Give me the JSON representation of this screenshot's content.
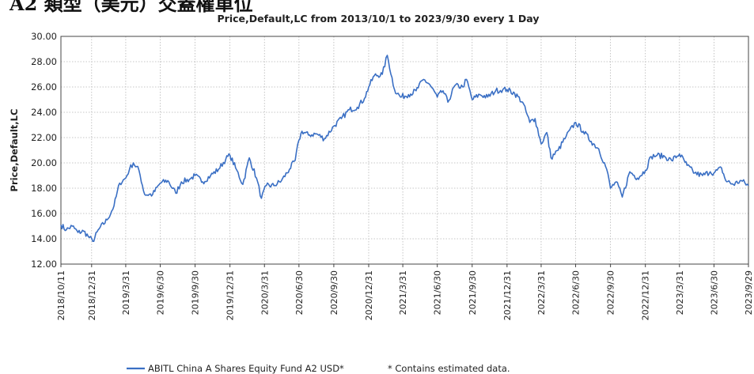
{
  "header_fragment": "A2 類型（美元）交蓋權單位",
  "chart_data": {
    "type": "line",
    "title": "Price,Default,LC from 2013/10/1 to 2023/9/30 every 1 Day",
    "ylabel": "Price,Default,LC",
    "xlabel": "",
    "ylim": [
      12.0,
      30.0
    ],
    "yticks": [
      "12.00",
      "14.00",
      "16.00",
      "18.00",
      "20.00",
      "22.00",
      "24.00",
      "26.00",
      "28.00",
      "30.00"
    ],
    "xticks": [
      "2018/10/11",
      "2018/12/31",
      "2019/3/31",
      "2019/6/30",
      "2019/9/30",
      "2019/12/31",
      "2020/3/31",
      "2020/6/30",
      "2020/9/30",
      "2020/12/31",
      "2021/3/31",
      "2021/6/30",
      "2021/9/30",
      "2021/12/31",
      "2022/3/31",
      "2022/6/30",
      "2022/9/30",
      "2022/12/31",
      "2023/3/31",
      "2023/6/30",
      "2023/9/29"
    ],
    "grid": true,
    "legend": "bottom",
    "color": "#3a6fc4",
    "series": [
      {
        "name": "ABITL China A Shares Equity Fund A2 USD*",
        "x": [
          "2018-10-11",
          "2018-10-25",
          "2018-11-10",
          "2018-11-25",
          "2018-12-10",
          "2018-12-25",
          "2019-01-03",
          "2019-01-20",
          "2019-02-10",
          "2019-02-28",
          "2019-03-15",
          "2019-03-31",
          "2019-04-10",
          "2019-04-20",
          "2019-05-05",
          "2019-05-20",
          "2019-06-10",
          "2019-06-30",
          "2019-07-20",
          "2019-08-10",
          "2019-08-25",
          "2019-09-15",
          "2019-09-30",
          "2019-10-20",
          "2019-11-10",
          "2019-12-01",
          "2019-12-20",
          "2019-12-31",
          "2020-01-15",
          "2020-02-03",
          "2020-02-20",
          "2020-03-10",
          "2020-03-23",
          "2020-04-05",
          "2020-04-25",
          "2020-05-15",
          "2020-06-05",
          "2020-06-20",
          "2020-06-30",
          "2020-07-08",
          "2020-07-25",
          "2020-08-15",
          "2020-09-05",
          "2020-09-30",
          "2020-10-20",
          "2020-11-10",
          "2020-12-01",
          "2020-12-20",
          "2020-12-31",
          "2021-01-15",
          "2021-02-05",
          "2021-02-18",
          "2021-03-09",
          "2021-03-25",
          "2021-04-15",
          "2021-05-05",
          "2021-05-25",
          "2021-06-10",
          "2021-06-30",
          "2021-07-15",
          "2021-07-28",
          "2021-08-15",
          "2021-09-05",
          "2021-09-15",
          "2021-09-30",
          "2021-10-20",
          "2021-11-10",
          "2021-12-01",
          "2021-12-20",
          "2021-12-31",
          "2022-01-20",
          "2022-02-10",
          "2022-03-01",
          "2022-03-15",
          "2022-03-31",
          "2022-04-15",
          "2022-04-26",
          "2022-05-15",
          "2022-06-05",
          "2022-06-30",
          "2022-07-20",
          "2022-08-10",
          "2022-08-30",
          "2022-09-20",
          "2022-09-30",
          "2022-10-15",
          "2022-10-31",
          "2022-11-20",
          "2022-12-10",
          "2022-12-31",
          "2023-01-15",
          "2023-01-31",
          "2023-02-20",
          "2023-03-10",
          "2023-03-31",
          "2023-04-20",
          "2023-05-10",
          "2023-05-31",
          "2023-06-20",
          "2023-06-30",
          "2023-07-20",
          "2023-07-31",
          "2023-08-20",
          "2023-09-10",
          "2023-09-29"
        ],
        "values": [
          15.1,
          14.7,
          15.0,
          14.5,
          14.6,
          14.1,
          13.8,
          14.8,
          15.5,
          16.6,
          18.4,
          18.8,
          19.5,
          20.0,
          19.4,
          17.5,
          17.5,
          18.4,
          18.6,
          17.6,
          18.5,
          18.7,
          19.0,
          18.5,
          19.0,
          19.5,
          20.3,
          20.6,
          19.6,
          18.3,
          20.4,
          18.8,
          17.2,
          18.2,
          18.2,
          18.6,
          19.5,
          20.2,
          21.8,
          22.5,
          22.2,
          22.3,
          21.9,
          22.9,
          23.5,
          24.2,
          24.4,
          25.1,
          26.0,
          26.9,
          27.0,
          28.5,
          25.8,
          25.2,
          25.4,
          25.7,
          26.6,
          26.2,
          25.2,
          25.7,
          24.8,
          26.1,
          26.0,
          26.6,
          25.0,
          25.4,
          25.2,
          25.7,
          25.8,
          25.8,
          25.5,
          24.8,
          23.2,
          23.5,
          21.5,
          22.4,
          20.4,
          21.0,
          22.1,
          23.2,
          22.5,
          21.7,
          21.1,
          19.5,
          18.0,
          18.5,
          17.3,
          19.3,
          18.8,
          19.4,
          20.5,
          20.6,
          20.5,
          20.2,
          20.7,
          19.8,
          19.2,
          19.0,
          19.3,
          19.2,
          19.6,
          18.6,
          18.3,
          18.6,
          18.2
        ]
      }
    ],
    "legend_note": "*  Contains estimated data."
  }
}
